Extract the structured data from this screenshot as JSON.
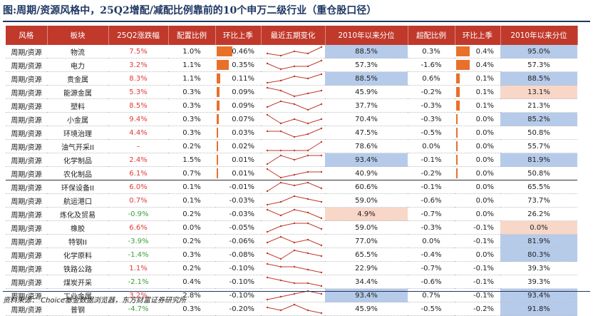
{
  "title": "图:周期/资源风格中，25Q2增配/减配比例靠前的10个申万二级行业（重仓股口径）",
  "source": "资料来源： Choice基金数据浏览器，东方财富证券研究所",
  "headers": [
    "风格",
    "板块",
    "25Q2涨跌幅",
    "配置比例",
    "环比上季",
    "最近五期变化",
    "2010年以来分位",
    "超配比例",
    "环比上季",
    "2010年以来分位"
  ],
  "colors": {
    "header_bg": "#c0392b",
    "up": "#e03a3a",
    "down": "#3aa03a",
    "bar": "#e8702a",
    "pct_high": "#b6cbea",
    "pct_low": "#f8d7c8",
    "sparkline": "#c0392b"
  },
  "rows": [
    {
      "style": "周期/资源",
      "sector": "物流",
      "chg": "7.5%",
      "alloc": "1.0%",
      "qoq": "0.46%",
      "pct": "88.5%",
      "over": "0.3%",
      "over_qoq": "0.4%",
      "over_pct": "95.0%",
      "spark": [
        2,
        1,
        3,
        2,
        5
      ],
      "pct_hl": "hi",
      "over_pct_hl": "hi",
      "qoq_bar": 0.46,
      "over_qoq_bar": 0.4
    },
    {
      "style": "周期/资源",
      "sector": "电力",
      "chg": "3.2%",
      "alloc": "1.1%",
      "qoq": "0.35%",
      "pct": "57.3%",
      "over": "-1.6%",
      "over_qoq": "0.4%",
      "over_pct": "57.3%",
      "spark": [
        3,
        1,
        2,
        2,
        4
      ],
      "qoq_bar": 0.35,
      "over_qoq_bar": 0.4
    },
    {
      "style": "周期/资源",
      "sector": "贵金属",
      "chg": "8.3%",
      "alloc": "1.1%",
      "qoq": "0.11%",
      "pct": "88.5%",
      "over": "0.6%",
      "over_qoq": "0.1%",
      "over_pct": "88.5%",
      "spark": [
        1,
        2,
        4,
        3,
        5
      ],
      "pct_hl": "hi",
      "over_pct_hl": "hi",
      "qoq_bar": 0.11,
      "over_qoq_bar": 0.1
    },
    {
      "style": "周期/资源",
      "sector": "能源金属",
      "chg": "5.3%",
      "alloc": "0.3%",
      "qoq": "0.09%",
      "pct": "45.9%",
      "over": "-0.2%",
      "over_qoq": "0.1%",
      "over_pct": "13.1%",
      "spark": [
        4,
        3,
        1,
        2,
        3
      ],
      "over_pct_hl": "lo",
      "qoq_bar": 0.09,
      "over_qoq_bar": 0.1
    },
    {
      "style": "周期/资源",
      "sector": "塑料",
      "chg": "8.5%",
      "alloc": "0.3%",
      "qoq": "0.09%",
      "pct": "37.7%",
      "over": "-0.3%",
      "over_qoq": "0.1%",
      "over_pct": "21.3%",
      "spark": [
        2,
        4,
        3,
        1,
        3
      ],
      "qoq_bar": 0.09,
      "over_qoq_bar": 0.1
    },
    {
      "style": "周期/资源",
      "sector": "小金属",
      "chg": "9.4%",
      "alloc": "0.3%",
      "qoq": "0.07%",
      "pct": "70.4%",
      "over": "-0.3%",
      "over_qoq": "0.0%",
      "over_pct": "85.2%",
      "spark": [
        4,
        2,
        3,
        2,
        3
      ],
      "over_pct_hl": "hi",
      "qoq_bar": 0.07,
      "over_qoq_bar": 0.02
    },
    {
      "style": "周期/资源",
      "sector": "环境治理",
      "chg": "4.4%",
      "alloc": "0.3%",
      "qoq": "0.03%",
      "pct": "47.5%",
      "over": "-0.5%",
      "over_qoq": "0.0%",
      "over_pct": "50.8%",
      "spark": [
        3,
        3,
        1,
        2,
        4
      ],
      "qoq_bar": 0.03,
      "over_qoq_bar": 0.02
    },
    {
      "style": "周期/资源",
      "sector": "油气开采II",
      "chg": "–",
      "alloc": "0.2%",
      "qoq": "0.02%",
      "pct": "78.6%",
      "over": "0.0%",
      "over_qoq": "0.0%",
      "over_pct": "55.7%",
      "spark": [
        1,
        1,
        1,
        1,
        4
      ],
      "qoq_bar": 0.02,
      "over_qoq_bar": 0.02
    },
    {
      "style": "周期/资源",
      "sector": "化学制品",
      "chg": "2.4%",
      "alloc": "1.5%",
      "qoq": "0.01%",
      "pct": "93.4%",
      "over": "-0.1%",
      "over_qoq": "0.0%",
      "over_pct": "81.9%",
      "spark": [
        2,
        4,
        3,
        4,
        4
      ],
      "pct_hl": "hi",
      "over_pct_hl": "hi",
      "qoq_bar": 0.01,
      "over_qoq_bar": 0.02
    },
    {
      "style": "周期/资源",
      "sector": "农化制品",
      "chg": "6.1%",
      "alloc": "0.7%",
      "qoq": "0.01%",
      "pct": "40.9%",
      "over": "-0.2%",
      "over_qoq": "0.0%",
      "over_pct": "50.8%",
      "spark": [
        4,
        1,
        2,
        3,
        3
      ],
      "qoq_bar": 0.01,
      "over_qoq_bar": 0.02
    },
    {
      "style": "周期/资源",
      "sector": "环保设备II",
      "chg": "6.0%",
      "alloc": "0.1%",
      "qoq": "-0.01%",
      "pct": "60.6%",
      "over": "-0.1%",
      "over_qoq": "0.0%",
      "over_pct": "65.5%",
      "spark": [
        1,
        4,
        3,
        4,
        2
      ],
      "break": true
    },
    {
      "style": "周期/资源",
      "sector": "航运港口",
      "chg": "0.7%",
      "alloc": "0.1%",
      "qoq": "-0.03%",
      "pct": "59.0%",
      "over": "-0.6%",
      "over_qoq": "0.0%",
      "over_pct": "73.7%",
      "spark": [
        1,
        2,
        4,
        3,
        2
      ]
    },
    {
      "style": "周期/资源",
      "sector": "炼化及贸易",
      "chg": "-0.9%",
      "alloc": "0.2%",
      "qoq": "-0.03%",
      "pct": "4.9%",
      "over": "-0.7%",
      "over_qoq": "0.0%",
      "over_pct": "26.2%",
      "spark": [
        4,
        2,
        4,
        3,
        1
      ],
      "pct_hl": "lo"
    },
    {
      "style": "周期/资源",
      "sector": "橡胶",
      "chg": "6.6%",
      "alloc": "0.0%",
      "qoq": "-0.05%",
      "pct": "59.0%",
      "over": "-0.3%",
      "over_qoq": "-0.1%",
      "over_pct": "0.0%",
      "spark": [
        1,
        3,
        4,
        4,
        2
      ],
      "over_pct_hl": "lo"
    },
    {
      "style": "周期/资源",
      "sector": "特钢II",
      "chg": "-3.9%",
      "alloc": "0.2%",
      "qoq": "-0.06%",
      "pct": "77.0%",
      "over": "0.0%",
      "over_qoq": "-0.1%",
      "over_pct": "81.9%",
      "spark": [
        2,
        4,
        2,
        3,
        1
      ],
      "over_pct_hl": "hi"
    },
    {
      "style": "周期/资源",
      "sector": "化学原料",
      "chg": "-1.4%",
      "alloc": "0.3%",
      "qoq": "-0.08%",
      "pct": "65.5%",
      "over": "-0.4%",
      "over_qoq": "0.0%",
      "over_pct": "80.3%",
      "spark": [
        3,
        1,
        4,
        3,
        2
      ],
      "over_pct_hl": "hi"
    },
    {
      "style": "周期/资源",
      "sector": "铁路公路",
      "chg": "1.1%",
      "alloc": "0.2%",
      "qoq": "-0.10%",
      "pct": "22.9%",
      "over": "-0.7%",
      "over_qoq": "-0.1%",
      "over_pct": "39.3%",
      "spark": [
        4,
        3,
        3,
        2,
        1
      ]
    },
    {
      "style": "周期/资源",
      "sector": "煤炭开采",
      "chg": "-2.1%",
      "alloc": "0.4%",
      "qoq": "-0.10%",
      "pct": "34.4%",
      "over": "-0.6%",
      "over_qoq": "-0.1%",
      "over_pct": "39.3%",
      "spark": [
        4,
        3,
        2,
        2,
        1
      ]
    },
    {
      "style": "周期/资源",
      "sector": "工业金属",
      "chg": "3.2%",
      "alloc": "2.8%",
      "qoq": "-0.10%",
      "pct": "93.4%",
      "over": "0.7%",
      "over_qoq": "-0.1%",
      "over_pct": "93.4%",
      "spark": [
        1,
        2,
        3,
        4,
        3
      ],
      "pct_hl": "hi",
      "over_pct_hl": "hi"
    },
    {
      "style": "周期/资源",
      "sector": "普钢",
      "chg": "-4.7%",
      "alloc": "0.3%",
      "qoq": "-0.20%",
      "pct": "45.9%",
      "over": "-0.5%",
      "over_qoq": "-0.2%",
      "over_pct": "91.8%",
      "spark": [
        3,
        2,
        4,
        2,
        1
      ],
      "over_pct_hl": "hi"
    }
  ]
}
